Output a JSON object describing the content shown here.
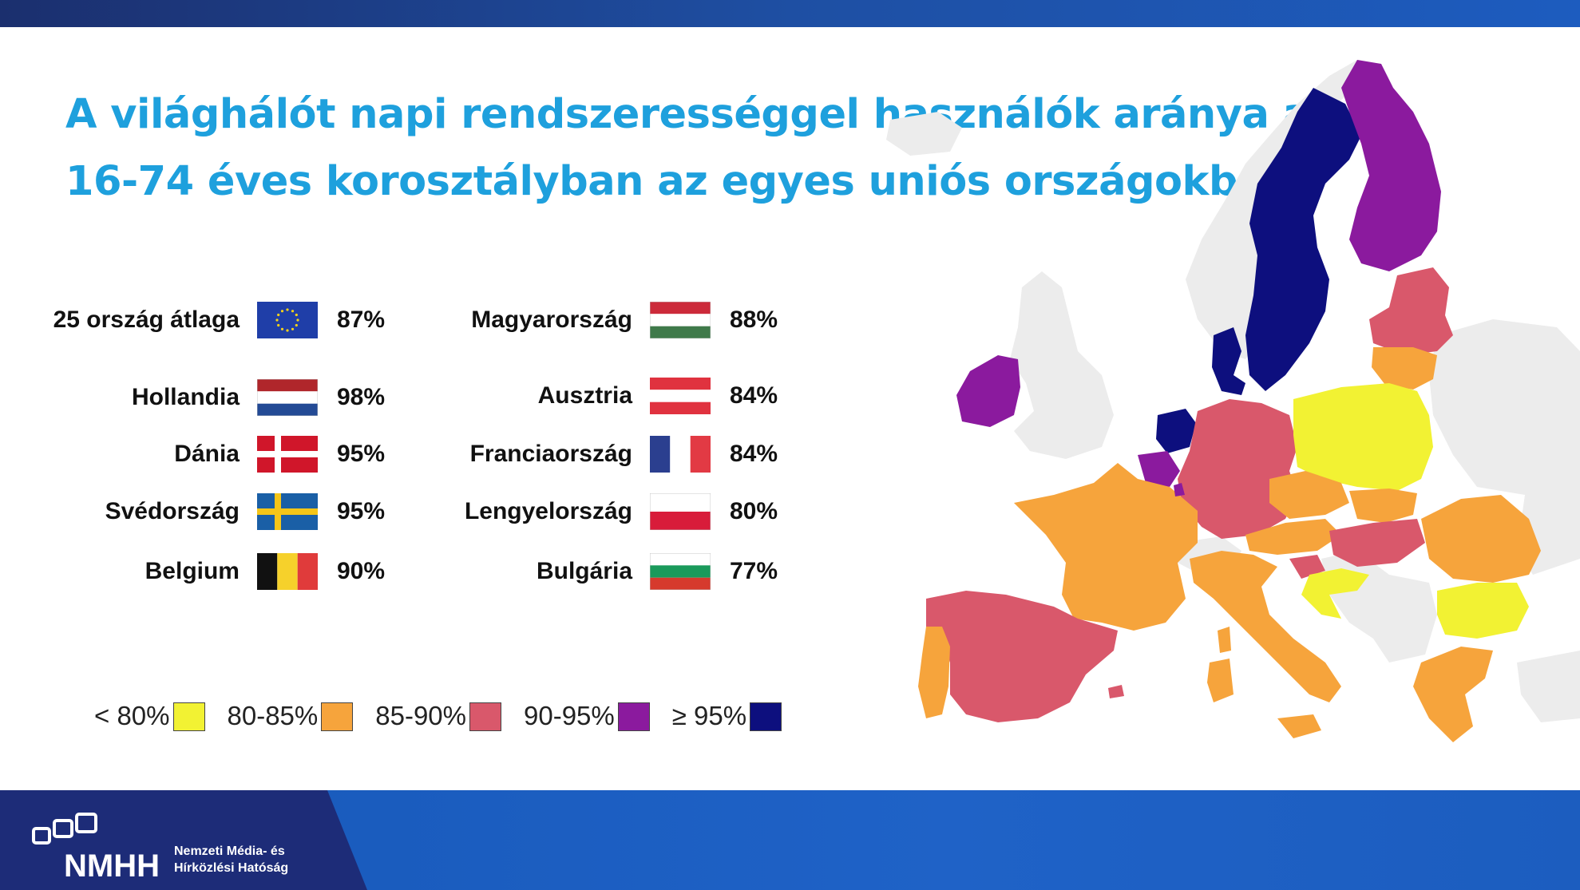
{
  "title": {
    "line1": "A világhálót napi rendszerességgel használók aránya a",
    "line2": "16-74 éves korosztályban az egyes uniós országokban"
  },
  "left_column": [
    {
      "name": "25 ország átlaga",
      "value": "87%",
      "flag": "eu"
    },
    {
      "name": "Hollandia",
      "value": "98%",
      "flag": "nl"
    },
    {
      "name": "Dánia",
      "value": "95%",
      "flag": "dk"
    },
    {
      "name": "Svédország",
      "value": "95%",
      "flag": "se"
    },
    {
      "name": "Belgium",
      "value": "90%",
      "flag": "be"
    }
  ],
  "right_column": [
    {
      "name": "Magyarország",
      "value": "88%",
      "flag": "hu"
    },
    {
      "name": "Ausztria",
      "value": "84%",
      "flag": "at"
    },
    {
      "name": "Franciaország",
      "value": "84%",
      "flag": "fr"
    },
    {
      "name": "Lengyelország",
      "value": "80%",
      "flag": "pl"
    },
    {
      "name": "Bulgária",
      "value": "77%",
      "flag": "bg"
    }
  ],
  "legend": [
    {
      "label": "< 80%",
      "color": "#f2f233"
    },
    {
      "label": "80-85%",
      "color": "#f6a43c"
    },
    {
      "label": "85-90%",
      "color": "#d9586b"
    },
    {
      "label": "90-95%",
      "color": "#8b1a9e"
    },
    {
      "label": "≥ 95%",
      "color": "#0d0f7e"
    }
  ],
  "map_colors": {
    "no_data": "#ececec",
    "lt80": "#f2f233",
    "r80_85": "#f6a43c",
    "r85_90": "#d9586b",
    "r90_95": "#8b1a9e",
    "ge95": "#0d0f7e"
  },
  "footer": {
    "org_line1": "Nemzeti Média- és",
    "org_line2": "Hírközlési Hatóság",
    "logo_text": "NMHH"
  }
}
